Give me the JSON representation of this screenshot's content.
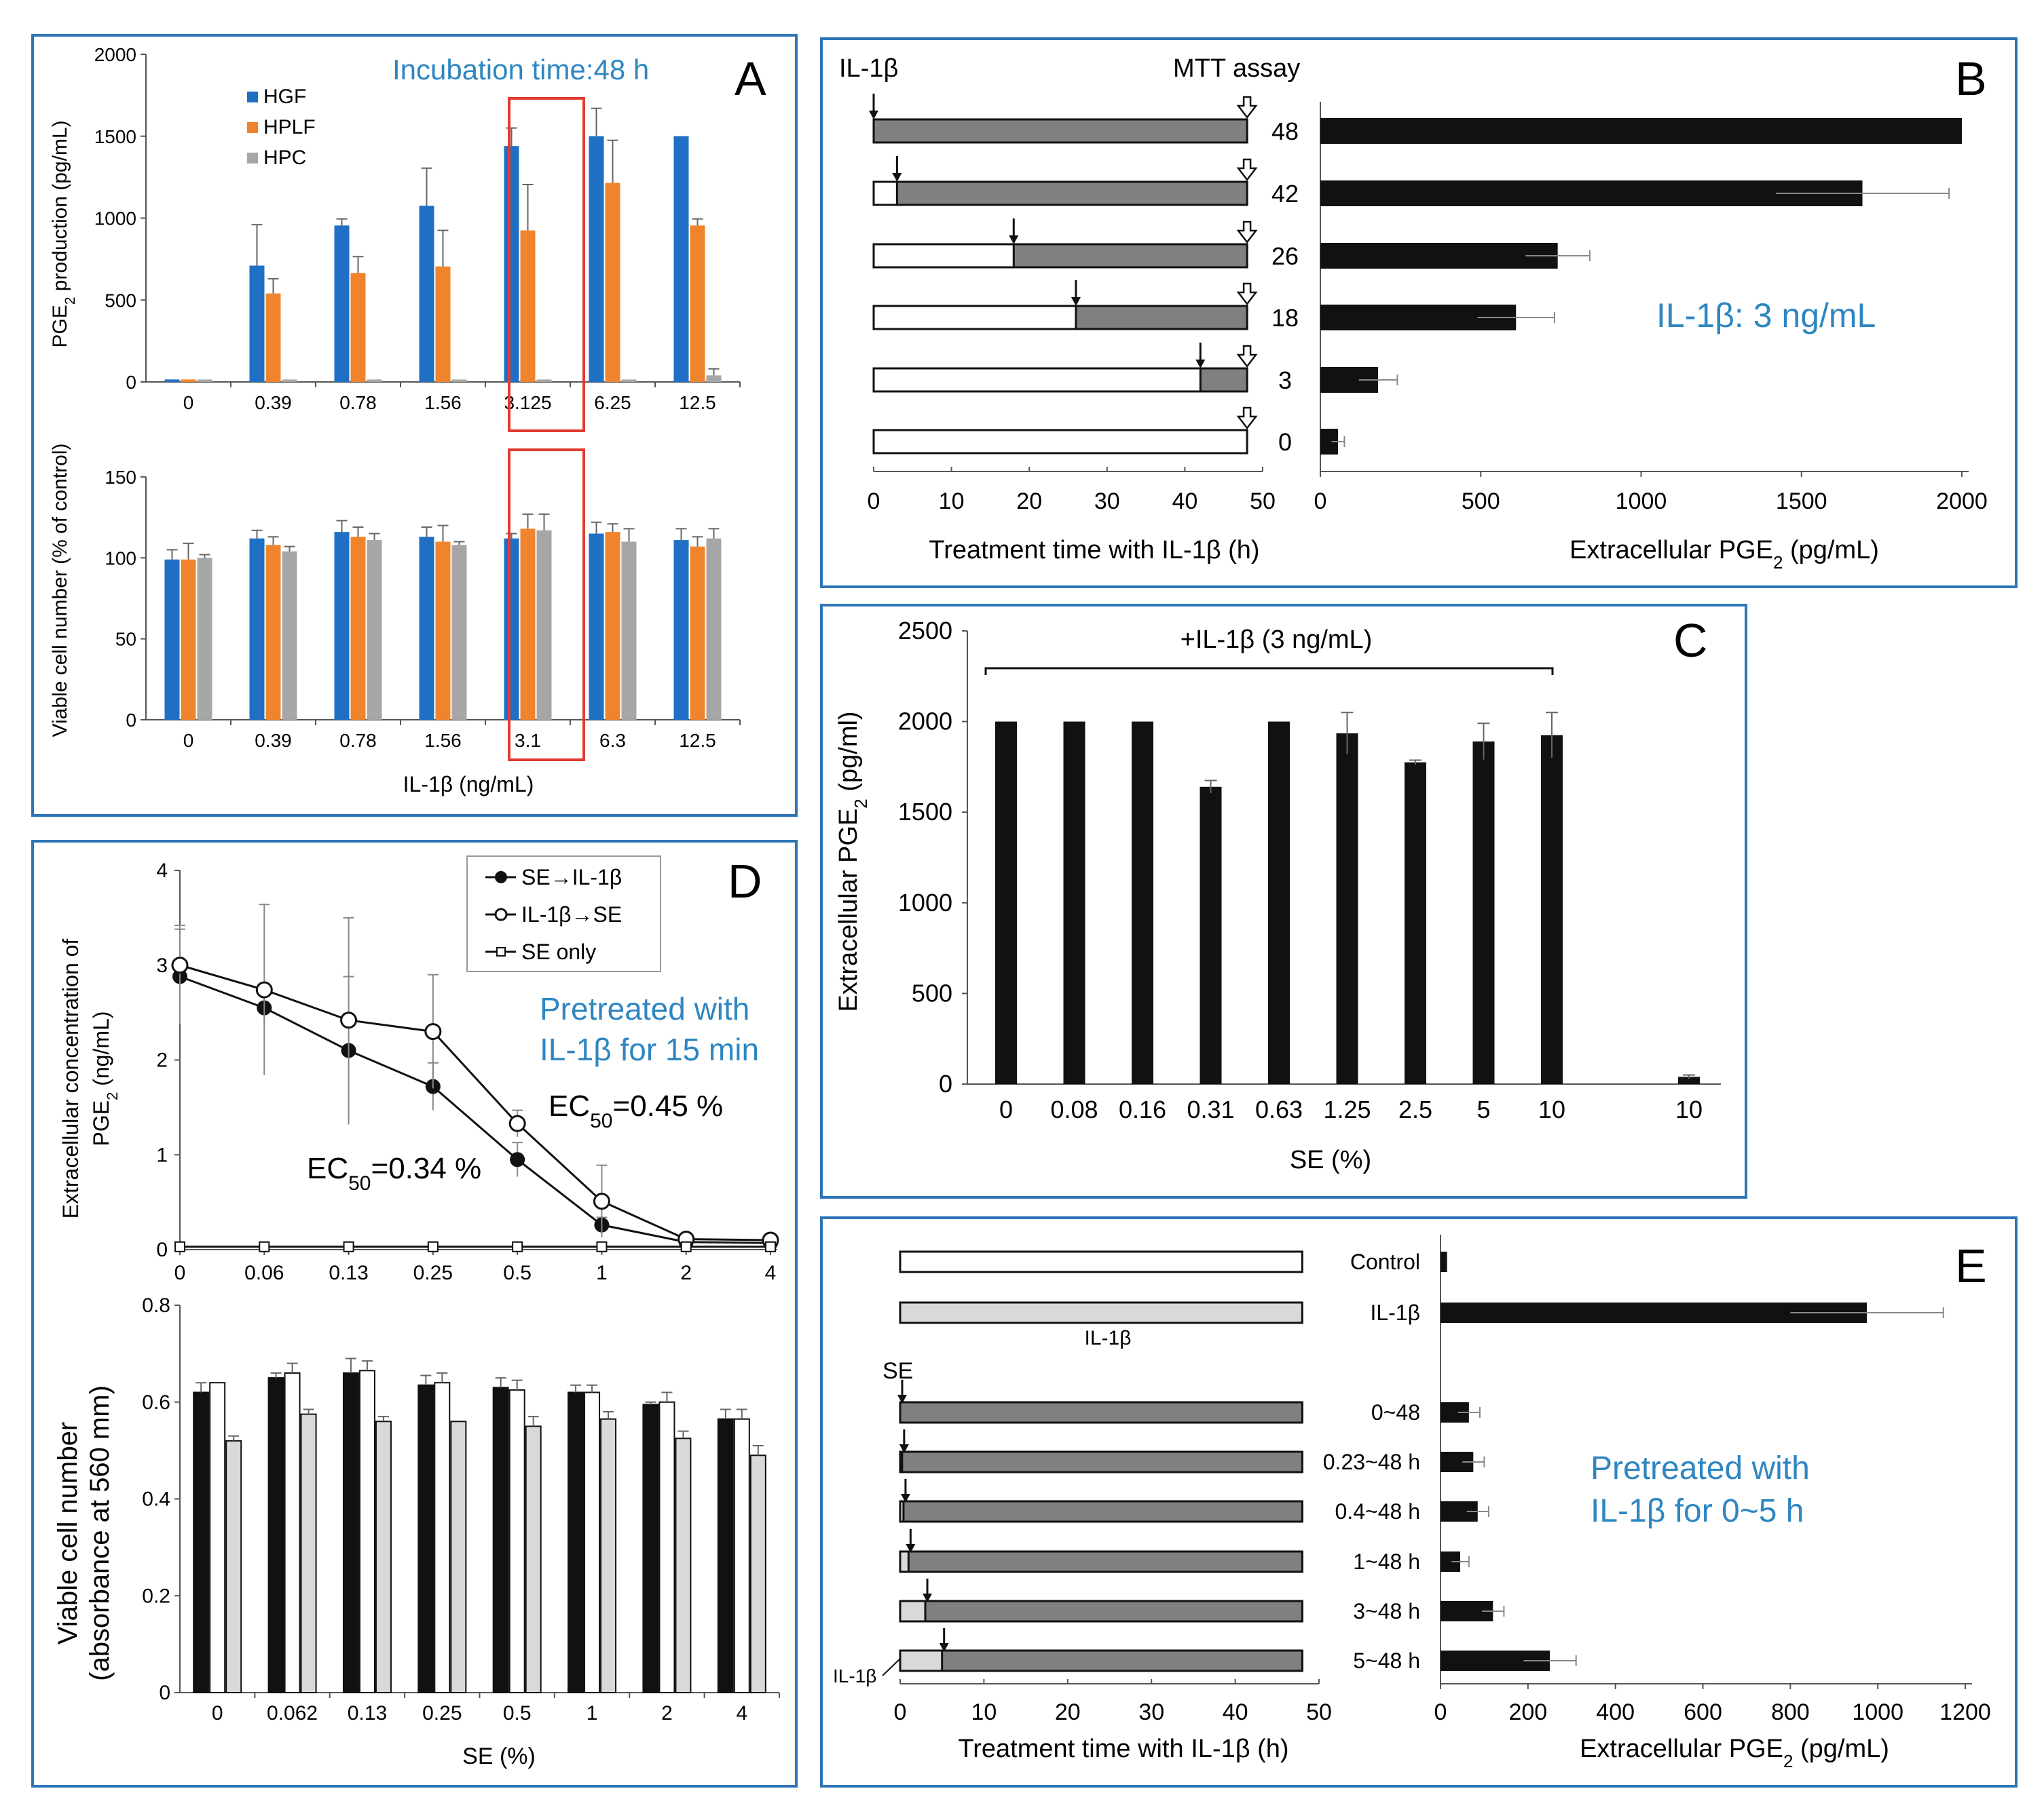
{
  "colors": {
    "hgf": "#1f6fc5",
    "hplf": "#f0842c",
    "hpc": "#a6a6a6",
    "frame": "#2e75b6",
    "accent": "#2e86c1",
    "red": "#e03c31",
    "dark": "#111111",
    "grey_bar": "#808080",
    "light_bar": "#d9d9d9"
  },
  "panelA": {
    "letter": "A",
    "annotation": "Incubation time:48 h",
    "xlabel": "IL-1β (ng/mL)",
    "legend": [
      "HGF",
      "HPLF",
      "HPC"
    ],
    "top": {
      "ylabel": "PGE2 production (pg/mL)",
      "ylabel_prefix": "PGE",
      "ylabel_sub": "2",
      "ylabel_suffix": " production (pg/mL)",
      "ymax": 2000,
      "yticks": [
        "0",
        "500",
        "1000",
        "1500",
        "2000"
      ],
      "categories": [
        "0",
        "0.39",
        "0.78",
        "1.56",
        "3.125",
        "6.25",
        "12.5"
      ],
      "series": [
        {
          "name": "HGF",
          "values": [
            15,
            710,
            955,
            1075,
            1440,
            1500,
            1500
          ],
          "errors": [
            0,
            250,
            40,
            230,
            110,
            170,
            0
          ]
        },
        {
          "name": "HPLF",
          "values": [
            15,
            540,
            665,
            705,
            925,
            1215,
            955
          ],
          "errors": [
            0,
            90,
            100,
            220,
            280,
            260,
            40
          ]
        },
        {
          "name": "HPC",
          "values": [
            15,
            15,
            15,
            15,
            15,
            15,
            40
          ],
          "errors": [
            0,
            0,
            0,
            0,
            0,
            0,
            40
          ]
        }
      ]
    },
    "bottom": {
      "ylabel": "Viable cell number (% of control)",
      "ymax": 150,
      "yticks": [
        "0",
        "50",
        "100",
        "150"
      ],
      "categories": [
        "0",
        "0.39",
        "0.78",
        "1.56",
        "3.1",
        "6.3",
        "12.5"
      ],
      "series": [
        {
          "name": "HGF",
          "values": [
            99,
            112,
            116,
            113,
            112,
            115,
            111
          ],
          "errors": [
            6,
            5,
            7,
            6,
            3,
            7,
            7
          ]
        },
        {
          "name": "HPLF",
          "values": [
            99,
            108,
            113,
            110,
            118,
            116,
            107
          ],
          "errors": [
            10,
            5,
            6,
            10,
            9,
            5,
            6
          ]
        },
        {
          "name": "HPC",
          "values": [
            100,
            104,
            111,
            108,
            117,
            110,
            112
          ],
          "errors": [
            2,
            3,
            4,
            2,
            10,
            8,
            6
          ]
        }
      ]
    }
  },
  "panelB": {
    "letter": "B",
    "label_il1b": "IL-1β",
    "label_mtt": "MTT assay",
    "timeline_xlabel": "Treatment time with IL-1β (h)",
    "timeline_ticks": [
      "0",
      "10",
      "20",
      "30",
      "40",
      "50"
    ],
    "rows": [
      {
        "label": "48",
        "start": 0,
        "value": 2000,
        "error": 0
      },
      {
        "label": "42",
        "start": 3,
        "value": 1690,
        "error": 270
      },
      {
        "label": "26",
        "start": 18,
        "value": 740,
        "error": 100
      },
      {
        "label": "18",
        "start": 26,
        "value": 610,
        "error": 120
      },
      {
        "label": "3",
        "start": 42,
        "value": 180,
        "error": 60
      },
      {
        "label": "0",
        "start": 48,
        "value": 55,
        "error": 20
      }
    ],
    "bar_xlabel_prefix": "Extracellular  PGE",
    "bar_xlabel_sub": "2",
    "bar_xlabel_suffix": " (pg/mL)",
    "bar_ticks": [
      "0",
      "500",
      "1000",
      "1500",
      "2000"
    ],
    "annotation": "IL-1β: 3 ng/mL"
  },
  "panelC": {
    "letter": "C",
    "bracket_label": "+IL-1β (3 ng/mL)",
    "ylabel_prefix": "Extracellular  PGE",
    "ylabel_sub": "2",
    "ylabel_suffix": " (pg/ml)",
    "xlabel": "SE (%)",
    "yticks": [
      "0",
      "500",
      "1000",
      "1500",
      "2000",
      "2500"
    ],
    "ymax": 2500,
    "categories": [
      "0",
      "0.08",
      "0.16",
      "0.31",
      "0.63",
      "1.25",
      "2.5",
      "5",
      "10",
      "10"
    ],
    "values": [
      2000,
      2000,
      2000,
      1640,
      2000,
      1935,
      1775,
      1890,
      1925,
      40
    ],
    "errors": [
      0,
      0,
      0,
      35,
      0,
      115,
      12,
      100,
      125,
      10
    ]
  },
  "panelD": {
    "letter": "D",
    "legend": [
      "SE→IL-1β",
      "IL-1β→SE",
      "SE only"
    ],
    "annotation_line1": "Pretreated with",
    "annotation_line2": "IL-1β for 15 min",
    "ec50_a_prefix": "EC",
    "ec50_a_sub": "50",
    "ec50_a_suffix": "=0.45 %",
    "ec50_b_prefix": "EC",
    "ec50_b_sub": "50",
    "ec50_b_suffix": "=0.34 %",
    "top": {
      "ylabel_line1": "Extracellular  concentration of",
      "ylabel_line2_prefix": "PGE",
      "ylabel_line2_sub": "2",
      "ylabel_line2_suffix": " (ng/mL)",
      "ymax": 4,
      "yticks": [
        "0",
        "1",
        "2",
        "3",
        "4"
      ],
      "categories": [
        "0",
        "0.06",
        "0.13",
        "0.25",
        "0.5",
        "1",
        "2",
        "4"
      ],
      "series": [
        {
          "name": "SE→IL-1β",
          "values": [
            2.88,
            2.55,
            2.1,
            1.72,
            0.95,
            0.26,
            0.08,
            0.07
          ],
          "errors": [
            0.5,
            0.2,
            0.78,
            0.25,
            0.18,
            0.08,
            0.03,
            0.03
          ]
        },
        {
          "name": "IL-1β→SE",
          "values": [
            3.0,
            2.74,
            2.42,
            2.3,
            1.33,
            0.51,
            0.11,
            0.1
          ],
          "errors": [
            0.42,
            0.9,
            1.08,
            0.6,
            0.14,
            0.38,
            0.03,
            0.03
          ]
        },
        {
          "name": "SE only",
          "values": [
            0.03,
            0.03,
            0.03,
            0.03,
            0.03,
            0.03,
            0.03,
            0.03
          ],
          "errors": [
            0,
            0,
            0,
            0,
            0,
            0,
            0,
            0
          ]
        }
      ]
    },
    "bottom": {
      "ylabel_line1": "Viable cell number",
      "ylabel_line2": "(absorbance at 560 mm)",
      "xlabel": "SE (%)",
      "ymax": 0.8,
      "yticks": [
        "0",
        "0.2",
        "0.4",
        "0.6",
        "0.8"
      ],
      "categories": [
        "0",
        "0.062",
        "0.13",
        "0.25",
        "0.5",
        "1",
        "2",
        "4"
      ],
      "series": [
        {
          "name": "SE→IL-1β",
          "values": [
            0.62,
            0.65,
            0.66,
            0.635,
            0.63,
            0.62,
            0.595,
            0.565
          ],
          "errors": [
            0.02,
            0.01,
            0.03,
            0.02,
            0.02,
            0.015,
            0.005,
            0.02
          ]
        },
        {
          "name": "IL-1β→SE",
          "values": [
            0.64,
            0.66,
            0.665,
            0.64,
            0.625,
            0.62,
            0.6,
            0.565
          ],
          "errors": [
            0,
            0.02,
            0.02,
            0.02,
            0.02,
            0.015,
            0.02,
            0.02
          ]
        },
        {
          "name": "SE only",
          "values": [
            0.52,
            0.575,
            0.56,
            0.56,
            0.55,
            0.565,
            0.525,
            0.49
          ],
          "errors": [
            0.01,
            0.01,
            0.01,
            0,
            0.02,
            0.015,
            0.015,
            0.02
          ]
        }
      ]
    }
  },
  "panelE": {
    "letter": "E",
    "label_se": "SE",
    "label_il1b_bar": "IL-1β",
    "label_il1b_side": "IL-1β",
    "timeline_xlabel": "Treatment time with IL-1β (h)",
    "timeline_ticks": [
      "0",
      "10",
      "20",
      "30",
      "40",
      "50"
    ],
    "rows": [
      {
        "label": "Control",
        "value": 15,
        "error": 0
      },
      {
        "label": "IL-1β",
        "value": 975,
        "error": 175
      },
      {
        "label": "0~48",
        "value": 65,
        "error": 25
      },
      {
        "label": "0.23~48 h",
        "value": 75,
        "error": 25
      },
      {
        "label": "0.4~48 h",
        "value": 85,
        "error": 25
      },
      {
        "label": "1~48 h",
        "value": 45,
        "error": 20
      },
      {
        "label": "3~48 h",
        "value": 120,
        "error": 25
      },
      {
        "label": "5~48 h",
        "value": 250,
        "error": 60
      }
    ],
    "bar_xlabel_prefix": "Extracellular  PGE",
    "bar_xlabel_sub": "2",
    "bar_xlabel_suffix": " (pg/mL)",
    "bar_ticks": [
      "0",
      "200",
      "400",
      "600",
      "800",
      "1000",
      "1200"
    ],
    "annotation_line1": "Pretreated with",
    "annotation_line2": "IL-1β for 0~5 h"
  }
}
